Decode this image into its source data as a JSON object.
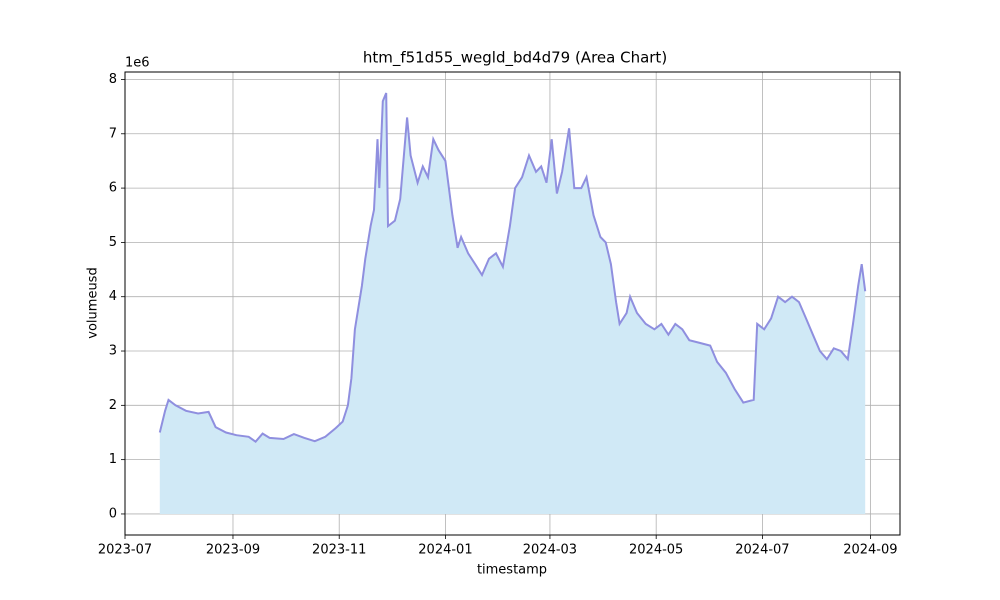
{
  "chart_data": {
    "type": "area",
    "title": "htm_f51d55_wegld_bd4d79 (Area Chart)",
    "x_label": "timestamp",
    "y_label": "volumeusd",
    "y_offset_label": "1e6",
    "line_color": "#8f8fdf",
    "fill_color": "#d0e9f6",
    "grid": true,
    "x": [
      "2023-07-21",
      "2023-07-24",
      "2023-07-26",
      "2023-07-30",
      "2023-08-05",
      "2023-08-12",
      "2023-08-18",
      "2023-08-22",
      "2023-08-28",
      "2023-09-03",
      "2023-09-10",
      "2023-09-14",
      "2023-09-18",
      "2023-09-22",
      "2023-09-30",
      "2023-10-06",
      "2023-10-12",
      "2023-10-18",
      "2023-10-24",
      "2023-10-30",
      "2023-11-03",
      "2023-11-06",
      "2023-11-08",
      "2023-11-10",
      "2023-11-14",
      "2023-11-16",
      "2023-11-19",
      "2023-11-21",
      "2023-11-23",
      "2023-11-24",
      "2023-11-26",
      "2023-11-28",
      "2023-11-29",
      "2023-12-03",
      "2023-12-06",
      "2023-12-10",
      "2023-12-12",
      "2023-12-16",
      "2023-12-19",
      "2023-12-22",
      "2023-12-25",
      "2023-12-28",
      "2024-01-01",
      "2024-01-05",
      "2024-01-08",
      "2024-01-10",
      "2024-01-14",
      "2024-01-18",
      "2024-01-22",
      "2024-01-26",
      "2024-01-30",
      "2024-02-03",
      "2024-02-07",
      "2024-02-10",
      "2024-02-14",
      "2024-02-18",
      "2024-02-22",
      "2024-02-25",
      "2024-02-28",
      "2024-03-02",
      "2024-03-05",
      "2024-03-08",
      "2024-03-12",
      "2024-03-15",
      "2024-03-19",
      "2024-03-22",
      "2024-03-26",
      "2024-03-30",
      "2024-04-02",
      "2024-04-05",
      "2024-04-08",
      "2024-04-10",
      "2024-04-14",
      "2024-04-16",
      "2024-04-20",
      "2024-04-25",
      "2024-04-30",
      "2024-05-04",
      "2024-05-08",
      "2024-05-12",
      "2024-05-16",
      "2024-05-20",
      "2024-05-26",
      "2024-06-01",
      "2024-06-05",
      "2024-06-10",
      "2024-06-15",
      "2024-06-20",
      "2024-06-26",
      "2024-06-28",
      "2024-07-02",
      "2024-07-06",
      "2024-07-10",
      "2024-07-14",
      "2024-07-18",
      "2024-07-22",
      "2024-07-26",
      "2024-07-30",
      "2024-08-03",
      "2024-08-07",
      "2024-08-11",
      "2024-08-15",
      "2024-08-19",
      "2024-08-22",
      "2024-08-25",
      "2024-08-27",
      "2024-08-29"
    ],
    "values": [
      1500000,
      1900000,
      2100000,
      2000000,
      1900000,
      1850000,
      1880000,
      1600000,
      1500000,
      1450000,
      1420000,
      1330000,
      1480000,
      1400000,
      1380000,
      1470000,
      1400000,
      1340000,
      1420000,
      1580000,
      1700000,
      2000000,
      2500000,
      3400000,
      4200000,
      4700000,
      5300000,
      5600000,
      6900000,
      6000000,
      7600000,
      7750000,
      5300000,
      5400000,
      5800000,
      7300000,
      6600000,
      6100000,
      6400000,
      6200000,
      6900000,
      6700000,
      6500000,
      5500000,
      4900000,
      5100000,
      4800000,
      4600000,
      4400000,
      4700000,
      4800000,
      4550000,
      5300000,
      6000000,
      6200000,
      6600000,
      6300000,
      6400000,
      6100000,
      6900000,
      5900000,
      6300000,
      7100000,
      6000000,
      6000000,
      6200000,
      5500000,
      5100000,
      5000000,
      4600000,
      3900000,
      3500000,
      3700000,
      4000000,
      3700000,
      3500000,
      3400000,
      3500000,
      3300000,
      3500000,
      3400000,
      3200000,
      3150000,
      3100000,
      2800000,
      2600000,
      2300000,
      2050000,
      2100000,
      3500000,
      3400000,
      3600000,
      4000000,
      3900000,
      4000000,
      3900000,
      3600000,
      3300000,
      3000000,
      2850000,
      3050000,
      3000000,
      2850000,
      3500000,
      4200000,
      4600000,
      4100000
    ],
    "xlim": [
      "2023-07-01",
      "2024-09-18"
    ],
    "xticks": [
      "2023-07",
      "2023-09",
      "2023-11",
      "2024-01",
      "2024-03",
      "2024-05",
      "2024-07",
      "2024-09"
    ],
    "ylim": [
      -387500,
      8137500
    ],
    "yticks": [
      {
        "value": 0,
        "label": "0"
      },
      {
        "value": 1000000,
        "label": "1"
      },
      {
        "value": 2000000,
        "label": "2"
      },
      {
        "value": 3000000,
        "label": "3"
      },
      {
        "value": 4000000,
        "label": "4"
      },
      {
        "value": 5000000,
        "label": "5"
      },
      {
        "value": 6000000,
        "label": "6"
      },
      {
        "value": 7000000,
        "label": "7"
      },
      {
        "value": 8000000,
        "label": "8"
      }
    ]
  }
}
